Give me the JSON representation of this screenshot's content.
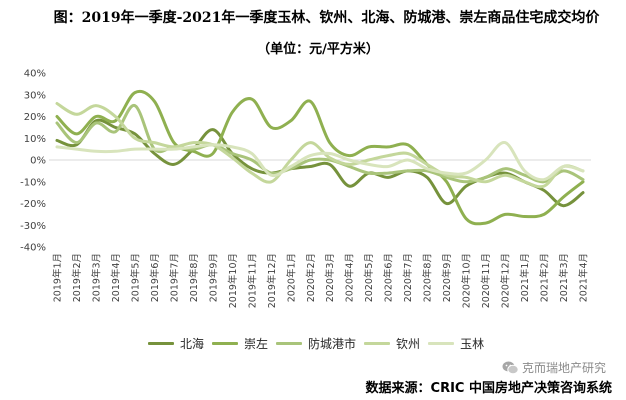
{
  "title": "图：2019年一季度-2021年一季度玉林、钦州、北海、防城港、崇左商品住宅成交均价",
  "subtitle": "（单位：元/平方米）",
  "chart_data": {
    "type": "line",
    "categories": [
      "2019年1月",
      "2019年2月",
      "2019年3月",
      "2019年4月",
      "2019年5月",
      "2019年6月",
      "2019年7月",
      "2019年8月",
      "2019年9月",
      "2019年10月",
      "2019年11月",
      "2019年12月",
      "2020年1月",
      "2020年2月",
      "2020年3月",
      "2020年4月",
      "2020年5月",
      "2020年6月",
      "2020年7月",
      "2020年8月",
      "2020年9月",
      "2020年10月",
      "2020年11月",
      "2020年12月",
      "2021年1月",
      "2021年2月",
      "2021年3月",
      "2021年4月"
    ],
    "series": [
      {
        "name": "北海",
        "color": "#76923C",
        "values": [
          9,
          7,
          18,
          15,
          12,
          3,
          -2,
          5,
          14,
          3,
          -4,
          -6,
          -4,
          -3,
          -2,
          -12,
          -6,
          -8,
          -5,
          -8,
          -20,
          -12,
          -8,
          -6,
          -10,
          -14,
          -21,
          -15
        ]
      },
      {
        "name": "崇左",
        "color": "#8FB050",
        "values": [
          20,
          12,
          20,
          18,
          31,
          27,
          8,
          4,
          3,
          22,
          28,
          15,
          18,
          27,
          8,
          2,
          6,
          6,
          7,
          -2,
          -10,
          -27,
          -29,
          -25,
          -26,
          -25,
          -17,
          -10
        ]
      },
      {
        "name": "防城港市",
        "color": "#A9C47A",
        "values": [
          17,
          8,
          17,
          13,
          25,
          5,
          6,
          5,
          7,
          3,
          0,
          -6,
          -4,
          0,
          0,
          -3,
          -6,
          -6,
          -5,
          -5,
          -8,
          -10,
          -8,
          -4,
          -7,
          -10,
          -5,
          -9
        ]
      },
      {
        "name": "钦州",
        "color": "#C4D79B",
        "values": [
          26,
          21,
          25,
          20,
          10,
          8,
          6,
          8,
          7,
          1,
          -6,
          -10,
          0,
          8,
          1,
          -2,
          0,
          2,
          3,
          -2,
          -7,
          -8,
          -10,
          -7,
          -10,
          -12,
          -3,
          -5
        ]
      },
      {
        "name": "玉林",
        "color": "#D8E4BC",
        "values": [
          6,
          5,
          4,
          4,
          5,
          5,
          5,
          6,
          7,
          6,
          3,
          -7,
          -3,
          2,
          3,
          0,
          -2,
          -3,
          0,
          -4,
          -6,
          -6,
          0,
          8,
          -5,
          -9,
          -3,
          -5
        ]
      }
    ],
    "y_tick_labels": [
      "40%",
      "30%",
      "20%",
      "10%",
      "0%",
      "-10%",
      "-20%",
      "-30%",
      "-40%"
    ],
    "ylim": [
      -40,
      40
    ],
    "grid": false,
    "legend": "bottom"
  },
  "watermark": {
    "icon": "wechat-icon",
    "text": "克而瑞地产研究"
  },
  "source": "数据来源：CRIC 中国房地产决策咨询系统"
}
